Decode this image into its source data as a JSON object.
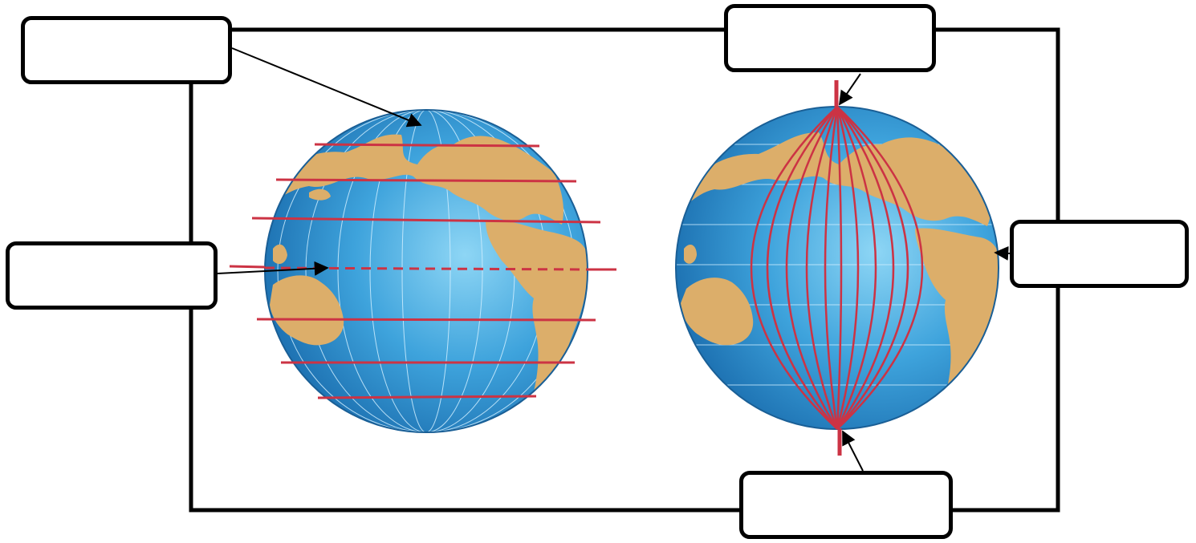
{
  "colors": {
    "ocean": "#3ea3dc",
    "ocean_highlight": "#8ed6f5",
    "ocean_shadow": "#1f74b4",
    "land": "#dcae6a",
    "line": "#cc3344",
    "outline": "#000000"
  },
  "labels": {
    "top_left": "",
    "mid_left": "",
    "top_right": "",
    "right": "",
    "bottom_right": ""
  }
}
